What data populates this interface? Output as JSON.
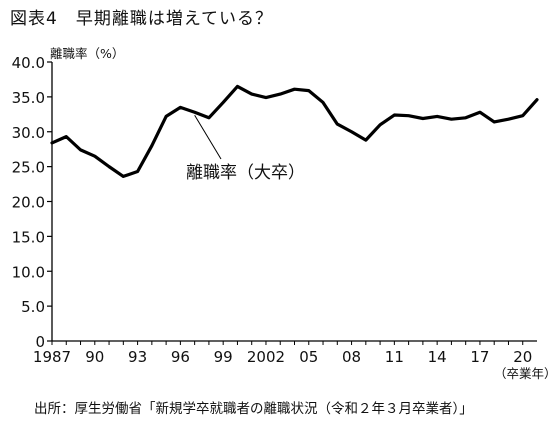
{
  "page": {
    "title": "図表4　早期離職は増えている？",
    "source": "出所：厚生労働省「新規学卒就職者の離職状況（令和２年３月卒業者）」"
  },
  "chart_data": {
    "type": "line",
    "title": "図表4　早期離職は増えている？",
    "ylabel": "離職率（%）",
    "xlabel": "（卒業年）",
    "ylim": [
      0,
      40
    ],
    "xlim": [
      1987,
      2021
    ],
    "yticks": [
      "0",
      "5.0",
      "10.0",
      "15.0",
      "20.0",
      "25.0",
      "30.0",
      "35.0",
      "40.0"
    ],
    "xticks": [
      {
        "year": 1987,
        "label": "1987"
      },
      {
        "year": 1990,
        "label": "90"
      },
      {
        "year": 1993,
        "label": "93"
      },
      {
        "year": 1996,
        "label": "96"
      },
      {
        "year": 1999,
        "label": "99"
      },
      {
        "year": 2002,
        "label": "2002"
      },
      {
        "year": 2005,
        "label": "05"
      },
      {
        "year": 2008,
        "label": "08"
      },
      {
        "year": 2011,
        "label": "11"
      },
      {
        "year": 2014,
        "label": "14"
      },
      {
        "year": 2017,
        "label": "17"
      },
      {
        "year": 2020,
        "label": "20"
      }
    ],
    "grid": false,
    "series": [
      {
        "name": "離職率（大卒）",
        "color": "#000000",
        "x": [
          1987,
          1988,
          1989,
          1990,
          1991,
          1992,
          1993,
          1994,
          1995,
          1996,
          1997,
          1998,
          1999,
          2000,
          2001,
          2002,
          2003,
          2004,
          2005,
          2006,
          2007,
          2008,
          2009,
          2010,
          2011,
          2012,
          2013,
          2014,
          2015,
          2016,
          2017,
          2018,
          2019,
          2020,
          2021
        ],
        "values": [
          28.4,
          29.3,
          27.4,
          26.5,
          25.0,
          23.6,
          24.3,
          28.0,
          32.2,
          33.5,
          32.8,
          32.0,
          34.2,
          36.5,
          35.4,
          34.9,
          35.4,
          36.1,
          35.9,
          34.2,
          31.1,
          30.0,
          28.8,
          31.0,
          32.4,
          32.3,
          31.9,
          32.2,
          31.8,
          32.0,
          32.8,
          31.4,
          31.8,
          32.3,
          34.6
        ]
      }
    ],
    "annotation": {
      "text": "離職率（大卒）",
      "x": 1997,
      "y": 32.8
    }
  }
}
